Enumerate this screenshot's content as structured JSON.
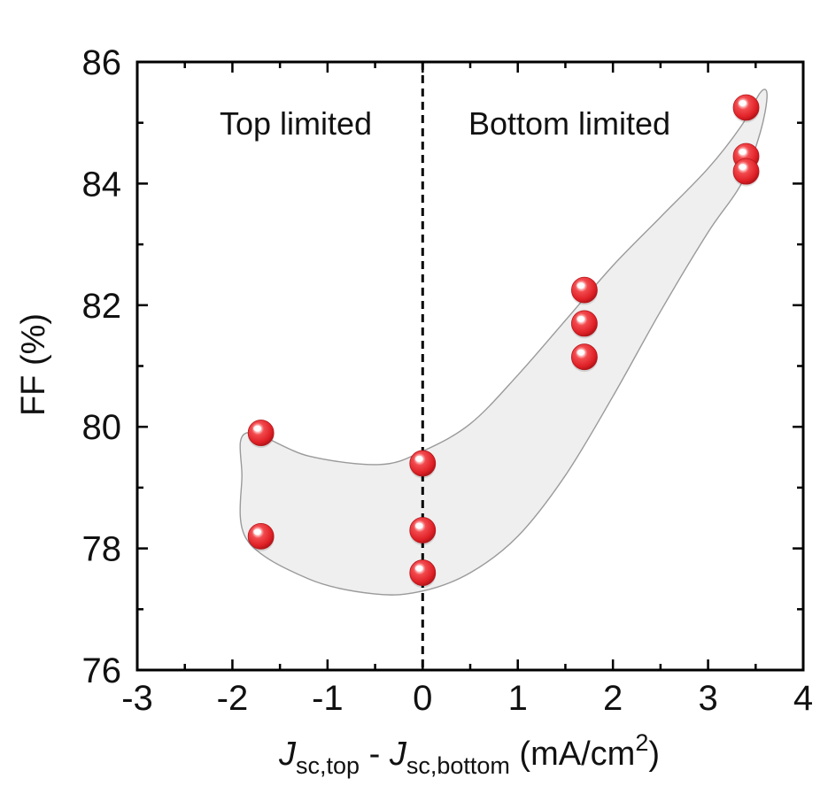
{
  "chart_data": {
    "type": "scatter",
    "title": "",
    "xlim": [
      -3,
      4
    ],
    "ylim": [
      76,
      86
    ],
    "x_ticks": [
      -3,
      -2,
      -1,
      0,
      1,
      2,
      3,
      4
    ],
    "y_ticks": [
      76,
      78,
      80,
      82,
      84,
      86
    ],
    "x_minor_step": 0.5,
    "y_minor_step": 1,
    "xlabel": {
      "j1": "J",
      "sub1": "sc,top",
      "sep": " - ",
      "j2": "J",
      "sub2": "sc,bottom",
      "unit_open": " (mA/cm",
      "unit_sup": "2",
      "unit_close": ")"
    },
    "ylabel": "FF (%)",
    "divider_x": 0,
    "region_labels": {
      "left": "Top limited",
      "right": "Bottom limited"
    },
    "marker_color": "#e8262b",
    "band_fill": "#efefef",
    "band_stroke": "#9a9a9a",
    "grid": false,
    "series": [
      {
        "points": [
          {
            "x": -1.7,
            "y": 79.9
          },
          {
            "x": -1.7,
            "y": 78.2
          },
          {
            "x": 0.0,
            "y": 79.4
          },
          {
            "x": 0.0,
            "y": 78.3
          },
          {
            "x": 0.0,
            "y": 77.6
          },
          {
            "x": 1.7,
            "y": 82.25
          },
          {
            "x": 1.7,
            "y": 81.7
          },
          {
            "x": 1.7,
            "y": 81.15
          },
          {
            "x": 3.4,
            "y": 85.25
          },
          {
            "x": 3.4,
            "y": 84.45
          },
          {
            "x": 3.4,
            "y": 84.2
          }
        ]
      }
    ],
    "band_outline": [
      [
        -1.85,
        79.9
      ],
      [
        -1.2,
        79.52
      ],
      [
        -0.45,
        79.38
      ],
      [
        0.0,
        79.6
      ],
      [
        0.5,
        80.05
      ],
      [
        1.0,
        80.85
      ],
      [
        1.5,
        81.75
      ],
      [
        2.0,
        82.65
      ],
      [
        2.5,
        83.45
      ],
      [
        3.0,
        84.25
      ],
      [
        3.35,
        84.95
      ],
      [
        3.55,
        85.5
      ],
      [
        3.62,
        85.45
      ],
      [
        3.55,
        84.85
      ],
      [
        3.35,
        84.0
      ],
      [
        3.0,
        83.2
      ],
      [
        2.5,
        81.9
      ],
      [
        2.0,
        80.5
      ],
      [
        1.5,
        79.2
      ],
      [
        1.0,
        78.2
      ],
      [
        0.5,
        77.6
      ],
      [
        0.0,
        77.3
      ],
      [
        -0.5,
        77.25
      ],
      [
        -1.2,
        77.5
      ],
      [
        -1.85,
        78.15
      ],
      [
        -1.9,
        79.2
      ]
    ]
  }
}
